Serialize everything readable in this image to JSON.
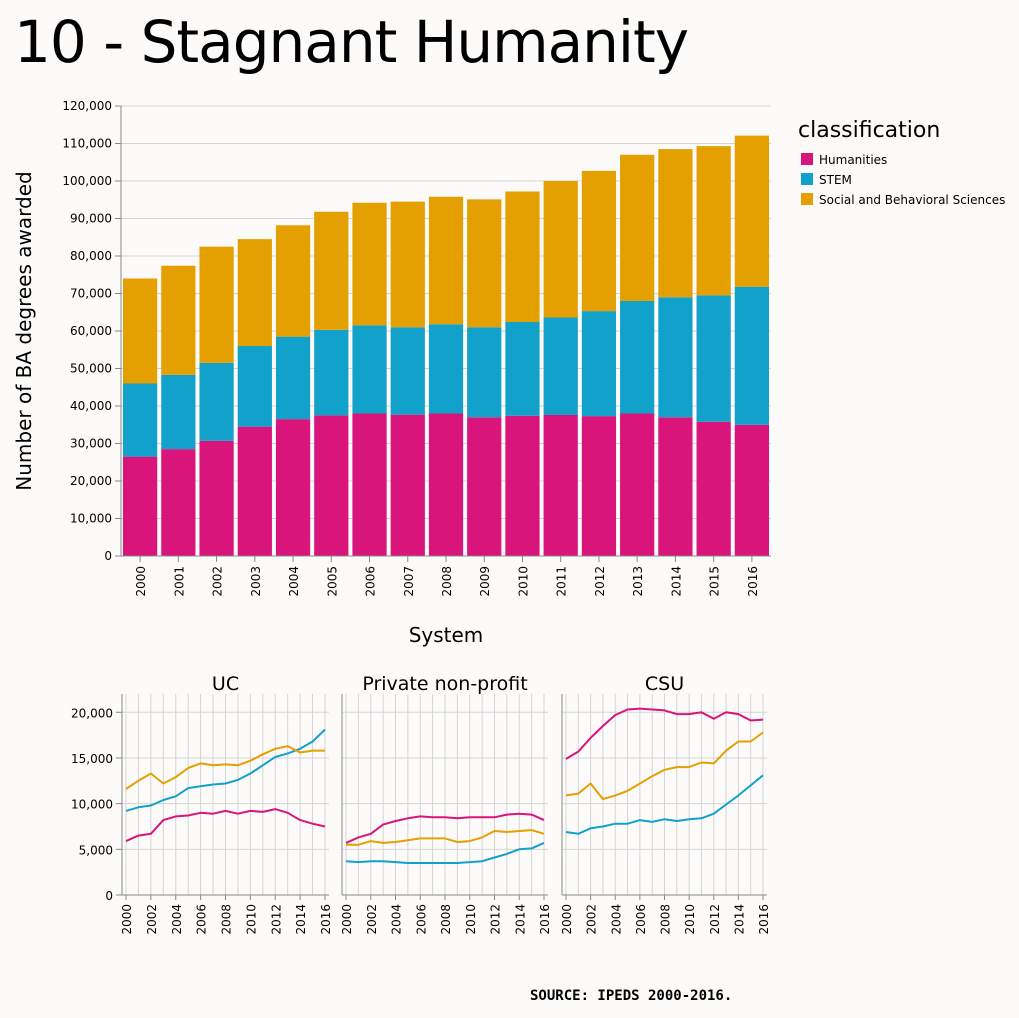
{
  "page": {
    "title": "10 - Stagnant Humanity",
    "source": "SOURCE: IPEDS 2000-2016."
  },
  "colors": {
    "Humanities": "#d9157b",
    "STEM": "#12a1cb",
    "Social and Behavioral Sciences": "#e3a000",
    "grid": "#d4d4d4",
    "background": "#fdfbfa"
  },
  "chart_data": [
    {
      "type": "bar",
      "stacked": true,
      "title": "",
      "xlabel": "System",
      "ylabel": "Number of BA degrees awarded",
      "ylim": [
        0,
        120000
      ],
      "yticks": [
        0,
        10000,
        20000,
        30000,
        40000,
        50000,
        60000,
        70000,
        80000,
        90000,
        100000,
        110000,
        120000
      ],
      "grid": "horizontal",
      "legend": {
        "title": "classification",
        "placement": "right",
        "entries": [
          "Humanities",
          "STEM",
          "Social and Behavioral Sciences"
        ]
      },
      "categories": [
        "2000",
        "2001",
        "2002",
        "2003",
        "2004",
        "2005",
        "2006",
        "2007",
        "2008",
        "2009",
        "2010",
        "2011",
        "2012",
        "2013",
        "2014",
        "2015",
        "2016"
      ],
      "series": [
        {
          "name": "Humanities",
          "values": [
            26500,
            28500,
            30700,
            34500,
            36500,
            37500,
            38000,
            37700,
            38000,
            37000,
            37400,
            37600,
            37300,
            38000,
            37000,
            35800,
            35000
          ]
        },
        {
          "name": "STEM",
          "values": [
            19500,
            19800,
            20800,
            21500,
            22000,
            22800,
            23500,
            23300,
            23800,
            24000,
            25000,
            26000,
            28000,
            30000,
            32000,
            33700,
            36800
          ]
        },
        {
          "name": "Social and Behavioral Sciences",
          "values": [
            28000,
            29100,
            31000,
            28500,
            29700,
            31500,
            32700,
            33500,
            34000,
            34100,
            34800,
            36400,
            37400,
            39000,
            39500,
            39800,
            40300
          ]
        }
      ]
    },
    {
      "type": "line",
      "title": "UC",
      "ylim": [
        0,
        22000
      ],
      "yticks": [
        0,
        5000,
        10000,
        15000,
        20000
      ],
      "grid": "both",
      "x": [
        "2000",
        "2001",
        "2002",
        "2003",
        "2004",
        "2005",
        "2006",
        "2007",
        "2008",
        "2009",
        "2010",
        "2011",
        "2012",
        "2013",
        "2014",
        "2015",
        "2016"
      ],
      "xticks": [
        "2000",
        "2002",
        "2004",
        "2006",
        "2008",
        "2010",
        "2012",
        "2014",
        "2016"
      ],
      "series": [
        {
          "name": "Humanities",
          "values": [
            5900,
            6500,
            6700,
            8200,
            8600,
            8700,
            9000,
            8900,
            9200,
            8900,
            9200,
            9100,
            9400,
            9000,
            8200,
            7800,
            7500
          ]
        },
        {
          "name": "STEM",
          "values": [
            9200,
            9600,
            9800,
            10400,
            10800,
            11700,
            11900,
            12100,
            12200,
            12600,
            13300,
            14200,
            15100,
            15500,
            16000,
            16800,
            18100
          ]
        },
        {
          "name": "Social and Behavioral Sciences",
          "values": [
            11600,
            12500,
            13300,
            12200,
            12900,
            13900,
            14400,
            14200,
            14300,
            14200,
            14700,
            15400,
            16000,
            16300,
            15600,
            15800,
            15800
          ]
        }
      ]
    },
    {
      "type": "line",
      "title": "Private non-profit",
      "ylim": [
        0,
        22000
      ],
      "grid": "both",
      "x": [
        "2000",
        "2001",
        "2002",
        "2003",
        "2004",
        "2005",
        "2006",
        "2007",
        "2008",
        "2009",
        "2010",
        "2011",
        "2012",
        "2013",
        "2014",
        "2015",
        "2016"
      ],
      "xticks": [
        "2000",
        "2002",
        "2004",
        "2006",
        "2008",
        "2010",
        "2012",
        "2014",
        "2016"
      ],
      "series": [
        {
          "name": "Humanities",
          "values": [
            5700,
            6300,
            6700,
            7700,
            8100,
            8400,
            8600,
            8500,
            8500,
            8400,
            8500,
            8500,
            8500,
            8800,
            8900,
            8800,
            8200
          ]
        },
        {
          "name": "STEM",
          "values": [
            3700,
            3600,
            3700,
            3700,
            3600,
            3500,
            3500,
            3500,
            3500,
            3500,
            3600,
            3700,
            4100,
            4500,
            5000,
            5100,
            5700
          ]
        },
        {
          "name": "Social and Behavioral Sciences",
          "values": [
            5500,
            5500,
            5900,
            5700,
            5800,
            6000,
            6200,
            6200,
            6200,
            5800,
            5900,
            6300,
            7000,
            6900,
            7000,
            7100,
            6700
          ]
        }
      ]
    },
    {
      "type": "line",
      "title": "CSU",
      "ylim": [
        0,
        22000
      ],
      "grid": "both",
      "x": [
        "2000",
        "2001",
        "2002",
        "2003",
        "2004",
        "2005",
        "2006",
        "2007",
        "2008",
        "2009",
        "2010",
        "2011",
        "2012",
        "2013",
        "2014",
        "2015",
        "2016"
      ],
      "xticks": [
        "2000",
        "2002",
        "2004",
        "2006",
        "2008",
        "2010",
        "2012",
        "2014",
        "2016"
      ],
      "series": [
        {
          "name": "Humanities",
          "values": [
            14900,
            15700,
            17200,
            18500,
            19700,
            20300,
            20400,
            20300,
            20200,
            19800,
            19800,
            20000,
            19300,
            20000,
            19800,
            19100,
            19200
          ]
        },
        {
          "name": "STEM",
          "values": [
            6900,
            6700,
            7300,
            7500,
            7800,
            7800,
            8200,
            8000,
            8300,
            8100,
            8300,
            8400,
            8900,
            9900,
            10900,
            12000,
            13100
          ]
        },
        {
          "name": "Social and Behavioral Sciences",
          "values": [
            10900,
            11100,
            12200,
            10500,
            10900,
            11400,
            12200,
            13000,
            13700,
            14000,
            14000,
            14500,
            14400,
            15800,
            16800,
            16800,
            17800
          ]
        }
      ]
    }
  ]
}
